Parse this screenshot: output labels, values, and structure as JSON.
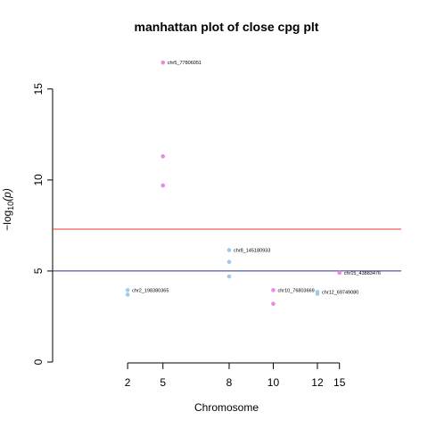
{
  "chart_data": {
    "type": "scatter",
    "title": "manhattan plot of close cpg plt",
    "xlabel": "Chromosome",
    "ylabel_prefix": "−log",
    "ylabel_subscript": "10",
    "ylabel_suffix": "(p)",
    "xlim": [
      0,
      15.8
    ],
    "ylim": [
      0,
      16.9
    ],
    "x_ticks": [
      2,
      5,
      8,
      10,
      12,
      15
    ],
    "x_tick_positions": [
      3.4,
      5,
      8,
      10,
      12,
      13
    ],
    "y_ticks": [
      0,
      5,
      10,
      15
    ],
    "colors": {
      "odd": "#e68ae6",
      "even": "#9fcbe8",
      "genomewide_line": "#e8392e",
      "suggestive_line": "#2e3192"
    },
    "thresholds": {
      "genomewide": 7.3,
      "suggestive": 5.0
    },
    "points": [
      {
        "chr": 2,
        "x": 3.4,
        "y": 3.95,
        "color": "even"
      },
      {
        "chr": 2,
        "x": 3.4,
        "y": 3.7,
        "color": "even"
      },
      {
        "chr": 5,
        "x": 5,
        "y": 16.45,
        "color": "odd"
      },
      {
        "chr": 5,
        "x": 5,
        "y": 11.3,
        "color": "odd"
      },
      {
        "chr": 5,
        "x": 5,
        "y": 9.7,
        "color": "odd"
      },
      {
        "chr": 8,
        "x": 8,
        "y": 6.15,
        "color": "even"
      },
      {
        "chr": 8,
        "x": 8,
        "y": 5.5,
        "color": "even"
      },
      {
        "chr": 8,
        "x": 8,
        "y": 4.7,
        "color": "even"
      },
      {
        "chr": 10,
        "x": 10,
        "y": 3.95,
        "color": "odd"
      },
      {
        "chr": 10,
        "x": 10,
        "y": 3.2,
        "color": "odd"
      },
      {
        "chr": 12,
        "x": 12,
        "y": 3.85,
        "color": "even"
      },
      {
        "chr": 12,
        "x": 12,
        "y": 3.75,
        "color": "even"
      },
      {
        "chr": 15,
        "x": 13,
        "y": 4.9,
        "color": "odd"
      }
    ],
    "annotations": [
      {
        "text": "chr2_198380365",
        "x": 3.4,
        "y": 3.95
      },
      {
        "text": "chr5_77806051",
        "x": 5,
        "y": 16.45
      },
      {
        "text": "chr8_145180933",
        "x": 8,
        "y": 6.15
      },
      {
        "text": "chr10_76803669",
        "x": 10,
        "y": 3.95
      },
      {
        "text": "chr12_69749080",
        "x": 12,
        "y": 3.85
      },
      {
        "text": "chr15_43883476",
        "x": 13,
        "y": 4.9
      }
    ]
  }
}
